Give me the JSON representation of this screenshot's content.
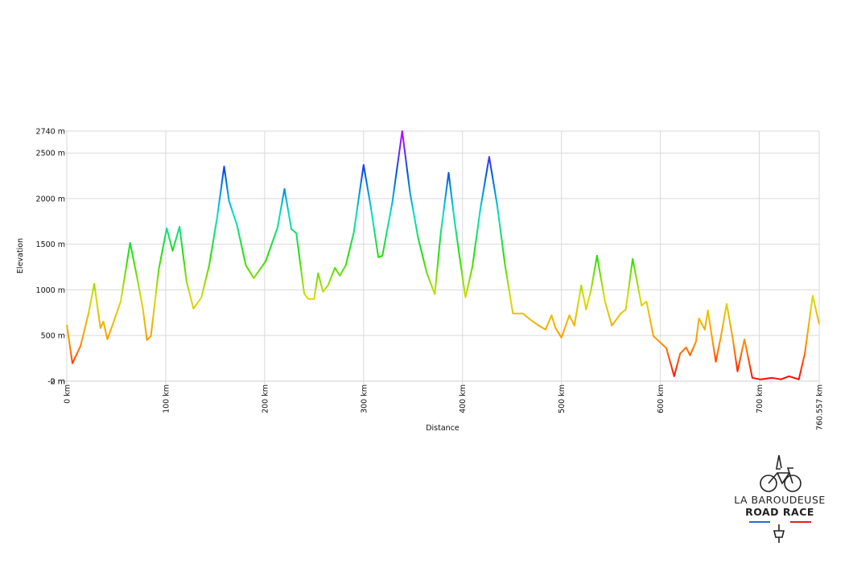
{
  "chart_data": {
    "type": "line",
    "x_label": "Distance",
    "y_label": "Elevation",
    "x": [
      0,
      5.7,
      14,
      22,
      27.7,
      34,
      37,
      41,
      46,
      54.5,
      64,
      71,
      77,
      81,
      85,
      93,
      101,
      107,
      114,
      121,
      128,
      136,
      144,
      152,
      159,
      164,
      172,
      181,
      189,
      201,
      213,
      220,
      227,
      232,
      240,
      244,
      250,
      254,
      259,
      264,
      271,
      276,
      282,
      290,
      300,
      307,
      315,
      319,
      329,
      339,
      347,
      355,
      364,
      372,
      378,
      386,
      392,
      396,
      403,
      410,
      418,
      427,
      435,
      443,
      451,
      461,
      469,
      477,
      484,
      490,
      494,
      500,
      508,
      513,
      520,
      525,
      530,
      536,
      544,
      551,
      560,
      565,
      572,
      581,
      586,
      593,
      599,
      606,
      614,
      620,
      626,
      630,
      636,
      639,
      645,
      648,
      656,
      661,
      667,
      673,
      678,
      685,
      693,
      701,
      713,
      722,
      730,
      740,
      746,
      754,
      760.557
    ],
    "values": [
      617,
      194,
      388,
      740,
      1066,
      581,
      652,
      458,
      608,
      872,
      1515,
      1137,
      784,
      449,
      493,
      1225,
      1674,
      1427,
      1692,
      1093,
      793,
      916,
      1269,
      1797,
      2352,
      1974,
      1709,
      1269,
      1128,
      1313,
      1683,
      2106,
      1665,
      1621,
      960,
      899,
      899,
      1181,
      978,
      1048,
      1242,
      1154,
      1269,
      1621,
      2370,
      1930,
      1357,
      1374,
      1956,
      2740,
      2062,
      1577,
      1181,
      952,
      1621,
      2282,
      1753,
      1445,
      916,
      1251,
      1885,
      2458,
      1930,
      1269,
      740,
      740,
      670,
      608,
      564,
      722,
      581,
      476,
      722,
      608,
      1048,
      784,
      1004,
      1374,
      872,
      608,
      740,
      784,
      1339,
      828,
      872,
      493,
      432,
      361,
      53,
      300,
      370,
      282,
      432,
      687,
      564,
      775,
      211,
      476,
      846,
      476,
      106,
      458,
      35,
      18,
      35,
      18,
      53,
      18,
      300,
      934,
      626
    ],
    "colorscale": [
      "#ff0000",
      "#ff9900",
      "#d8dc00",
      "#22e000",
      "#00e0c8",
      "#0050f0",
      "#cc00ff"
    ],
    "xlim": [
      0,
      760.557
    ],
    "xticks": [
      {
        "value": 0,
        "label": "0 km"
      },
      {
        "value": 100,
        "label": "100 km"
      },
      {
        "value": 200,
        "label": "200 km"
      },
      {
        "value": 300,
        "label": "300 km"
      },
      {
        "value": 400,
        "label": "400 km"
      },
      {
        "value": 500,
        "label": "500 km"
      },
      {
        "value": 600,
        "label": "600 km"
      },
      {
        "value": 700,
        "label": "700 km"
      },
      {
        "value": 760.557,
        "label": "760.557 km"
      }
    ],
    "ylim": [
      -2,
      2740
    ],
    "yticks": [
      {
        "value": -2,
        "label": "-2 m"
      },
      {
        "value": 0,
        "label": "0 m"
      },
      {
        "value": 500,
        "label": "500 m"
      },
      {
        "value": 1000,
        "label": "1000 m"
      },
      {
        "value": 1500,
        "label": "1500 m"
      },
      {
        "value": 2000,
        "label": "2000 m"
      },
      {
        "value": 2500,
        "label": "2500 m"
      },
      {
        "value": 2740,
        "label": "2740 m"
      }
    ],
    "grid": true
  },
  "logo": {
    "line1": "LA BAROUDEUSE",
    "line2": "ROAD RACE"
  }
}
